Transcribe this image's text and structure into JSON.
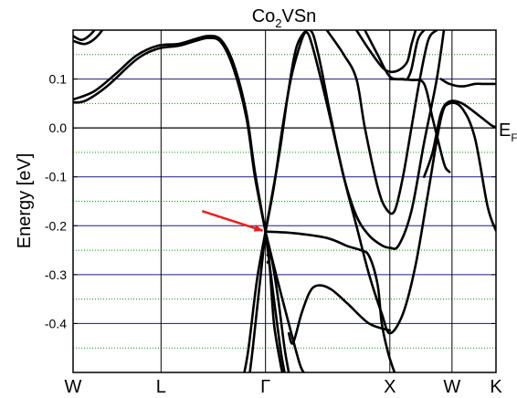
{
  "chart_data": {
    "type": "line",
    "title": "Co",
    "title_sub": "2",
    "title_tail": "VSn",
    "ylabel": "Energy [eV]",
    "fermi_label": "E",
    "fermi_sub": "F",
    "ylim": [
      -0.5,
      0.2
    ],
    "kpoints": [
      {
        "label": "W",
        "x": 0.0
      },
      {
        "label": "L",
        "x": 0.208
      },
      {
        "label": "Γ",
        "x": 0.455
      },
      {
        "label": "X",
        "x": 0.749
      },
      {
        "label": "W",
        "x": 0.896
      },
      {
        "label": "K",
        "x": 1.0
      }
    ],
    "yticks": [
      {
        "label": "0.1",
        "v": 0.1
      },
      {
        "label": "0.0",
        "v": 0.0
      },
      {
        "label": "-0.1",
        "v": -0.1
      },
      {
        "label": "-0.2",
        "v": -0.2
      },
      {
        "label": "-0.3",
        "v": -0.3
      },
      {
        "label": "-0.4",
        "v": -0.4
      }
    ],
    "major_grid": [
      0.15,
      0.1,
      0.05,
      0.0,
      -0.05,
      -0.1,
      -0.15,
      -0.2,
      -0.25,
      -0.3,
      -0.35,
      -0.4,
      -0.45
    ],
    "grid_colors": {
      "minor": "#0a9a0a",
      "major": "#1a1a8a"
    },
    "band_color": "#000000",
    "arrow_color": "#e8201c",
    "arrow": {
      "from": [
        0.305,
        -0.17
      ],
      "to": [
        0.448,
        -0.21
      ]
    },
    "series": [
      {
        "points": [
          [
            0.0,
            0.178
          ],
          [
            0.03,
            0.172
          ],
          [
            0.06,
            0.19
          ],
          [
            0.1,
            0.24
          ]
        ]
      },
      {
        "points": [
          [
            0.0,
            0.188
          ],
          [
            0.02,
            0.18
          ],
          [
            0.04,
            0.19
          ],
          [
            0.07,
            0.22
          ]
        ]
      },
      {
        "points": [
          [
            0.0,
            0.052
          ],
          [
            0.03,
            0.056
          ],
          [
            0.08,
            0.085
          ],
          [
            0.15,
            0.14
          ],
          [
            0.2,
            0.162
          ],
          [
            0.25,
            0.168
          ],
          [
            0.29,
            0.178
          ],
          [
            0.32,
            0.184
          ],
          [
            0.35,
            0.175
          ],
          [
            0.38,
            0.12
          ],
          [
            0.41,
            0.02
          ],
          [
            0.43,
            -0.1
          ],
          [
            0.455,
            -0.212
          ]
        ]
      },
      {
        "points": [
          [
            0.0,
            0.058
          ],
          [
            0.05,
            0.075
          ],
          [
            0.1,
            0.11
          ],
          [
            0.15,
            0.148
          ],
          [
            0.2,
            0.168
          ],
          [
            0.25,
            0.172
          ],
          [
            0.29,
            0.182
          ],
          [
            0.32,
            0.188
          ],
          [
            0.35,
            0.18
          ],
          [
            0.38,
            0.13
          ],
          [
            0.41,
            0.03
          ],
          [
            0.43,
            -0.09
          ],
          [
            0.455,
            -0.212
          ]
        ]
      },
      {
        "points": [
          [
            0.455,
            -0.212
          ],
          [
            0.47,
            -0.14
          ],
          [
            0.49,
            -0.04
          ],
          [
            0.51,
            0.08
          ],
          [
            0.53,
            0.17
          ],
          [
            0.56,
            0.2
          ],
          [
            0.58,
            0.15
          ],
          [
            0.61,
            0.02
          ],
          [
            0.64,
            -0.1
          ],
          [
            0.67,
            -0.18
          ],
          [
            0.7,
            -0.22
          ],
          [
            0.73,
            -0.24
          ],
          [
            0.749,
            -0.245
          ],
          [
            0.77,
            -0.24
          ],
          [
            0.8,
            -0.17
          ],
          [
            0.83,
            -0.03
          ],
          [
            0.86,
            0.1
          ],
          [
            0.88,
            0.22
          ]
        ]
      },
      {
        "points": [
          [
            0.455,
            -0.212
          ],
          [
            0.475,
            -0.12
          ],
          [
            0.495,
            0.0
          ],
          [
            0.515,
            0.1
          ],
          [
            0.535,
            0.165
          ],
          [
            0.55,
            0.195
          ],
          [
            0.565,
            0.17
          ],
          [
            0.6,
            0.05
          ],
          [
            0.64,
            -0.1
          ],
          [
            0.67,
            -0.2
          ],
          [
            0.7,
            -0.3
          ],
          [
            0.73,
            -0.38
          ],
          [
            0.749,
            -0.42
          ],
          [
            0.78,
            -0.38
          ],
          [
            0.81,
            -0.28
          ],
          [
            0.84,
            -0.13
          ],
          [
            0.87,
            0.02
          ],
          [
            0.89,
            0.05
          ],
          [
            0.92,
            0.04
          ],
          [
            0.95,
            -0.02
          ],
          [
            0.98,
            -0.16
          ],
          [
            1.0,
            -0.21
          ]
        ]
      },
      {
        "points": [
          [
            0.455,
            -0.212
          ],
          [
            0.52,
            -0.215
          ],
          [
            0.6,
            -0.225
          ],
          [
            0.65,
            -0.242
          ],
          [
            0.68,
            -0.25
          ],
          [
            0.7,
            -0.262
          ],
          [
            0.72,
            -0.32
          ],
          [
            0.73,
            -0.4
          ],
          [
            0.745,
            -0.46
          ],
          [
            0.76,
            -0.5
          ]
        ]
      },
      {
        "points": [
          [
            0.455,
            -0.212
          ],
          [
            0.48,
            -0.3
          ],
          [
            0.51,
            -0.4
          ],
          [
            0.535,
            -0.48
          ],
          [
            0.545,
            -0.5
          ]
        ]
      },
      {
        "points": [
          [
            0.455,
            -0.212
          ],
          [
            0.472,
            -0.33
          ],
          [
            0.49,
            -0.45
          ],
          [
            0.5,
            -0.5
          ]
        ]
      },
      {
        "points": [
          [
            0.455,
            -0.212
          ],
          [
            0.44,
            -0.33
          ],
          [
            0.425,
            -0.45
          ],
          [
            0.418,
            -0.5
          ]
        ]
      },
      {
        "points": [
          [
            0.455,
            -0.212
          ],
          [
            0.435,
            -0.31
          ],
          [
            0.415,
            -0.45
          ],
          [
            0.405,
            -0.5
          ]
        ]
      },
      {
        "points": [
          [
            0.46,
            -0.26
          ],
          [
            0.47,
            -0.27
          ],
          [
            0.485,
            -0.35
          ],
          [
            0.5,
            -0.45
          ],
          [
            0.51,
            -0.5
          ]
        ]
      },
      {
        "points": [
          [
            0.46,
            -0.275
          ],
          [
            0.465,
            -0.285
          ],
          [
            0.475,
            -0.4
          ],
          [
            0.49,
            -0.48
          ],
          [
            0.495,
            -0.5
          ]
        ]
      },
      {
        "points": [
          [
            0.51,
            -0.42
          ],
          [
            0.52,
            -0.44
          ],
          [
            0.54,
            -0.38
          ],
          [
            0.56,
            -0.335
          ],
          [
            0.58,
            -0.322
          ],
          [
            0.61,
            -0.33
          ],
          [
            0.65,
            -0.36
          ],
          [
            0.7,
            -0.4
          ],
          [
            0.749,
            -0.414
          ]
        ]
      },
      {
        "points": [
          [
            0.6,
            0.2
          ],
          [
            0.64,
            0.15
          ],
          [
            0.67,
            0.1
          ],
          [
            0.69,
            0.0
          ],
          [
            0.72,
            -0.12
          ],
          [
            0.74,
            -0.165
          ],
          [
            0.76,
            -0.17
          ],
          [
            0.78,
            -0.1
          ],
          [
            0.8,
            0.0
          ],
          [
            0.82,
            0.1
          ],
          [
            0.84,
            0.18
          ],
          [
            0.86,
            0.2
          ]
        ]
      },
      {
        "points": [
          [
            0.67,
            0.2
          ],
          [
            0.7,
            0.16
          ],
          [
            0.73,
            0.125
          ],
          [
            0.749,
            0.115
          ],
          [
            0.77,
            0.118
          ],
          [
            0.79,
            0.135
          ],
          [
            0.8,
            0.17
          ],
          [
            0.81,
            0.2
          ]
        ]
      },
      {
        "points": [
          [
            0.69,
            0.2
          ],
          [
            0.72,
            0.15
          ],
          [
            0.749,
            0.105
          ],
          [
            0.78,
            0.1
          ],
          [
            0.79,
            0.1
          ],
          [
            0.8,
            0.12
          ],
          [
            0.815,
            0.18
          ],
          [
            0.83,
            0.2
          ]
        ]
      },
      {
        "points": [
          [
            0.749,
            0.1
          ],
          [
            0.8,
            0.098
          ],
          [
            0.83,
            0.09
          ],
          [
            0.85,
            0.02
          ],
          [
            0.87,
            -0.05
          ],
          [
            0.88,
            -0.08
          ],
          [
            0.89,
            -0.09
          ]
        ]
      },
      {
        "points": [
          [
            0.83,
            -0.1
          ],
          [
            0.85,
            -0.05
          ],
          [
            0.87,
            0.03
          ],
          [
            0.89,
            0.054
          ],
          [
            0.92,
            0.05
          ],
          [
            0.96,
            0.025
          ],
          [
            0.99,
            0.005
          ],
          [
            1.0,
            0.002
          ]
        ]
      },
      {
        "points": [
          [
            0.87,
            0.1
          ],
          [
            0.89,
            0.09
          ],
          [
            0.92,
            0.085
          ],
          [
            0.95,
            0.09
          ],
          [
            0.97,
            0.09
          ],
          [
            1.0,
            0.09
          ]
        ]
      }
    ]
  }
}
